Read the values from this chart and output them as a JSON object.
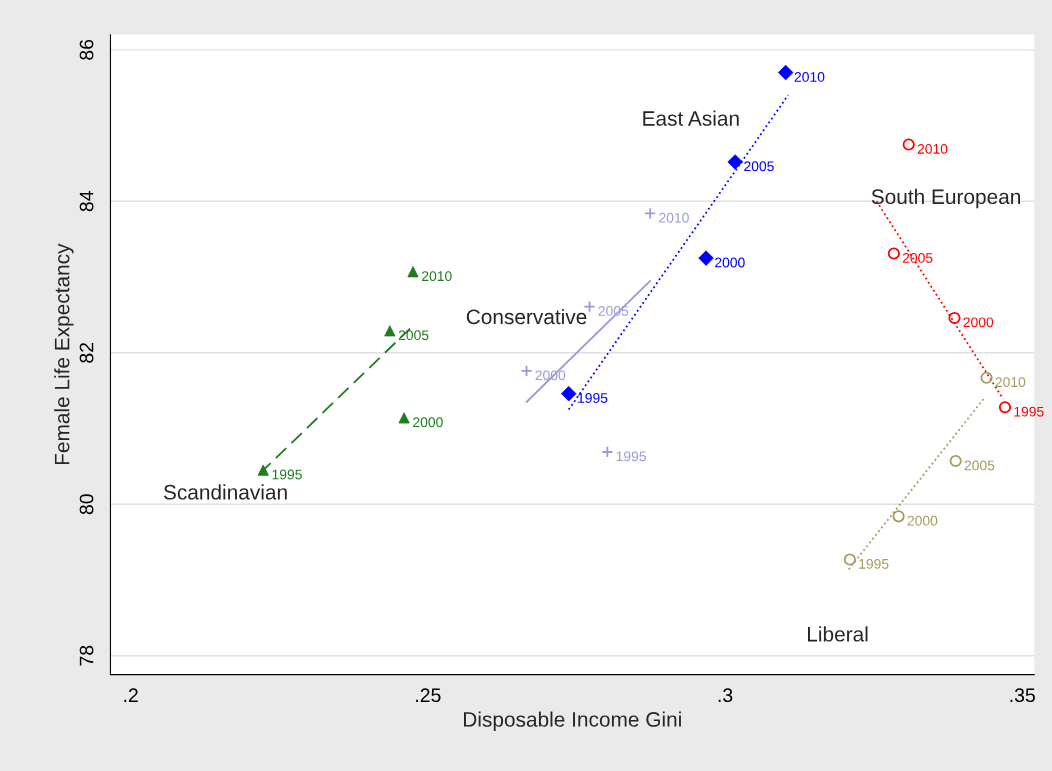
{
  "chart_data": {
    "type": "scatter",
    "xlabel": "Disposable Income Gini",
    "ylabel": "Female Life Expectancy",
    "xlim": [
      0.1966,
      0.352
    ],
    "ylim": [
      77.75,
      86.2
    ],
    "xticks": [
      {
        "value": 0.2,
        "label": ".2"
      },
      {
        "value": 0.25,
        "label": ".25"
      },
      {
        "value": 0.3,
        "label": ".3"
      },
      {
        "value": 0.35,
        "label": ".35"
      }
    ],
    "yticks": [
      78,
      80,
      82,
      84,
      86
    ],
    "grid": "y",
    "legend": false,
    "series": [
      {
        "color": "#1e7d1e",
        "marker": "triangle",
        "x": [
          0.2223,
          0.246,
          0.2436,
          0.2475
        ],
        "values": [
          80.45,
          81.14,
          82.29,
          83.07
        ]
      },
      {
        "name": "Scandinavian",
        "type": "line",
        "color": "#1e7d1e",
        "line_style": "dashed",
        "x": [
          0.2218,
          0.247
        ],
        "values": [
          80.41,
          82.32
        ]
      },
      {
        "color": "#9a9ad8",
        "marker": "cross",
        "x": [
          0.2802,
          0.2666,
          0.2772,
          0.2874
        ],
        "values": [
          80.69,
          81.76,
          82.61,
          83.84
        ]
      },
      {
        "name": "Conservative",
        "type": "line",
        "color": "#9a9ad8",
        "line_style": "solid",
        "x": [
          0.2666,
          0.2874
        ],
        "values": [
          81.35,
          82.95
        ]
      },
      {
        "color": "#0000ff",
        "marker": "diamond",
        "x": [
          0.2737,
          0.2968,
          0.3017,
          0.3102
        ],
        "values": [
          81.46,
          83.25,
          84.52,
          85.7
        ]
      },
      {
        "name": "East Asian",
        "type": "line",
        "color": "#0000ff",
        "line_style": "dotted",
        "x": [
          0.2737,
          0.3106
        ],
        "values": [
          81.25,
          85.4
        ]
      },
      {
        "color": "#ff0000",
        "marker": "circle",
        "x": [
          0.3471,
          0.3386,
          0.3284,
          0.3309
        ],
        "values": [
          81.28,
          82.46,
          83.31,
          84.75
        ]
      },
      {
        "name": "South European",
        "type": "line",
        "color": "#ff0000",
        "line_style": "dotted",
        "x": [
          0.3255,
          0.3468
        ],
        "values": [
          84.0,
          81.39
        ]
      },
      {
        "color": "#a89a5c",
        "marker": "circle",
        "x": [
          0.321,
          0.3292,
          0.3388,
          0.344
        ],
        "values": [
          79.27,
          79.84,
          80.57,
          81.67
        ]
      },
      {
        "name": "Liberal",
        "type": "line",
        "color": "#a89a5c",
        "line_style": "dotted",
        "x": [
          0.3208,
          0.3435
        ],
        "values": [
          79.14,
          81.39
        ]
      }
    ],
    "annotations": [
      {
        "text": "1995",
        "x": 0.2223,
        "y": 80.45
      },
      {
        "text": "2000",
        "x": 0.246,
        "y": 81.14
      },
      {
        "text": "2005",
        "x": 0.2436,
        "y": 82.29
      },
      {
        "text": "2010",
        "x": 0.2475,
        "y": 83.07
      },
      {
        "text": "1995",
        "x": 0.2802,
        "y": 80.69
      },
      {
        "text": "2000",
        "x": 0.2666,
        "y": 81.76
      },
      {
        "text": "2005",
        "x": 0.2772,
        "y": 82.61
      },
      {
        "text": "2010",
        "x": 0.2874,
        "y": 83.84
      },
      {
        "text": "1995",
        "x": 0.2737,
        "y": 81.46
      },
      {
        "text": "2000",
        "x": 0.2968,
        "y": 83.25
      },
      {
        "text": "2005",
        "x": 0.3017,
        "y": 84.52
      },
      {
        "text": "2010",
        "x": 0.3102,
        "y": 85.7
      },
      {
        "text": "1995",
        "x": 0.3471,
        "y": 81.28
      },
      {
        "text": "2000",
        "x": 0.3386,
        "y": 82.46
      },
      {
        "text": "2005",
        "x": 0.3284,
        "y": 83.31
      },
      {
        "text": "2010",
        "x": 0.3309,
        "y": 84.75
      },
      {
        "text": "1995",
        "x": 0.321,
        "y": 79.27
      },
      {
        "text": "2000",
        "x": 0.3292,
        "y": 79.84
      },
      {
        "text": "2005",
        "x": 0.3388,
        "y": 80.57
      },
      {
        "text": "2010",
        "x": 0.344,
        "y": 81.67
      }
    ]
  }
}
